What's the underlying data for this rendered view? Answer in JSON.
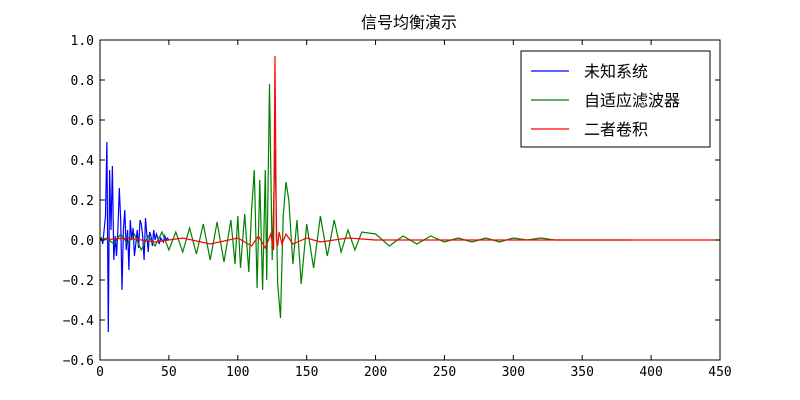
{
  "chart_data": {
    "type": "line",
    "title": "信号均衡演示",
    "xlabel": "",
    "ylabel": "",
    "xlim": [
      0,
      450
    ],
    "ylim": [
      -0.6,
      1.0
    ],
    "x_ticks": [
      "0",
      "50",
      "100",
      "150",
      "200",
      "250",
      "300",
      "350",
      "400",
      "450"
    ],
    "y_ticks": [
      "1.0",
      "0.8",
      "0.6",
      "0.4",
      "0.2",
      "0.0",
      "−0.2",
      "−0.4",
      "−0.6"
    ],
    "grid": false,
    "legend_position": "top-right",
    "colors": {
      "blue": "#0000ff",
      "green": "#008000",
      "red": "#ff0000"
    },
    "series": [
      {
        "name": "未知系统",
        "color": "#0000ff",
        "x": [
          0,
          1,
          2,
          3,
          4,
          5,
          6,
          7,
          8,
          9,
          10,
          11,
          12,
          13,
          14,
          15,
          16,
          17,
          18,
          19,
          20,
          21,
          22,
          23,
          24,
          25,
          26,
          27,
          28,
          29,
          30,
          31,
          32,
          33,
          34,
          35,
          36,
          37,
          38,
          39,
          40,
          41,
          42,
          43,
          44,
          45,
          46,
          47,
          48,
          49,
          50
        ],
        "y": [
          0,
          0.01,
          -0.02,
          0.05,
          0.12,
          0.49,
          -0.46,
          0.35,
          0.05,
          0.37,
          -0.1,
          0.02,
          -0.08,
          0.05,
          0.26,
          0.1,
          -0.25,
          0.05,
          0.15,
          -0.05,
          0.05,
          -0.15,
          0.1,
          0.0,
          0.06,
          -0.08,
          -0.02,
          0.05,
          -0.04,
          0.1,
          0.08,
          0.02,
          -0.1,
          0.11,
          0.03,
          -0.06,
          0.04,
          0.02,
          -0.03,
          0.05,
          0.0,
          0.03,
          0.01,
          -0.02,
          0.01,
          0.0,
          -0.01,
          0.02,
          0.0,
          0.01,
          0.0
        ]
      },
      {
        "name": "自适应滤波器",
        "color": "#008000",
        "x": [
          0,
          5,
          10,
          15,
          20,
          25,
          30,
          35,
          40,
          45,
          50,
          55,
          60,
          65,
          70,
          75,
          80,
          85,
          90,
          95,
          98,
          100,
          102,
          105,
          108,
          110,
          112,
          114,
          116,
          118,
          120,
          121,
          123,
          125,
          127,
          129,
          131,
          133,
          135,
          137,
          140,
          143,
          146,
          150,
          155,
          160,
          165,
          170,
          175,
          180,
          185,
          190,
          200,
          210,
          220,
          230,
          240,
          250,
          260,
          270,
          280,
          290,
          300,
          310,
          320,
          330,
          340,
          350,
          360,
          370,
          380,
          385
        ],
        "y": [
          0,
          0.01,
          -0.02,
          0.03,
          -0.02,
          0.03,
          -0.05,
          0.02,
          -0.03,
          0.04,
          -0.05,
          0.04,
          -0.06,
          0.06,
          -0.07,
          0.08,
          -0.1,
          0.09,
          -0.11,
          0.1,
          -0.12,
          0.12,
          -0.14,
          0.13,
          -0.16,
          0.15,
          0.35,
          -0.24,
          0.3,
          -0.25,
          0.35,
          -0.2,
          0.78,
          -0.1,
          0.45,
          -0.22,
          -0.39,
          0.12,
          0.29,
          0.2,
          -0.12,
          0.1,
          -0.22,
          0.08,
          -0.14,
          0.12,
          -0.08,
          0.1,
          -0.06,
          0.05,
          -0.05,
          0.04,
          0.03,
          -0.03,
          0.02,
          -0.02,
          0.02,
          -0.01,
          0.01,
          -0.01,
          0.01,
          -0.01,
          0.01,
          0.0,
          0.01,
          0.0,
          0.0,
          0.0,
          0.0,
          0.0,
          0.0,
          0.0
        ]
      },
      {
        "name": "二者卷积",
        "color": "#ff0000",
        "x": [
          0,
          20,
          40,
          60,
          80,
          100,
          110,
          115,
          120,
          124,
          126,
          127,
          128,
          129,
          130,
          132,
          135,
          140,
          150,
          160,
          180,
          200,
          250,
          300,
          350,
          400,
          450
        ],
        "y": [
          0,
          0.01,
          -0.01,
          0.01,
          -0.02,
          0.01,
          -0.03,
          0.02,
          -0.04,
          0.03,
          -0.05,
          0.92,
          0.0,
          -0.03,
          0.04,
          -0.02,
          0.03,
          -0.02,
          0.01,
          -0.01,
          0.01,
          0.0,
          0.0,
          0.0,
          0.0,
          0.0,
          0.0
        ]
      }
    ]
  }
}
